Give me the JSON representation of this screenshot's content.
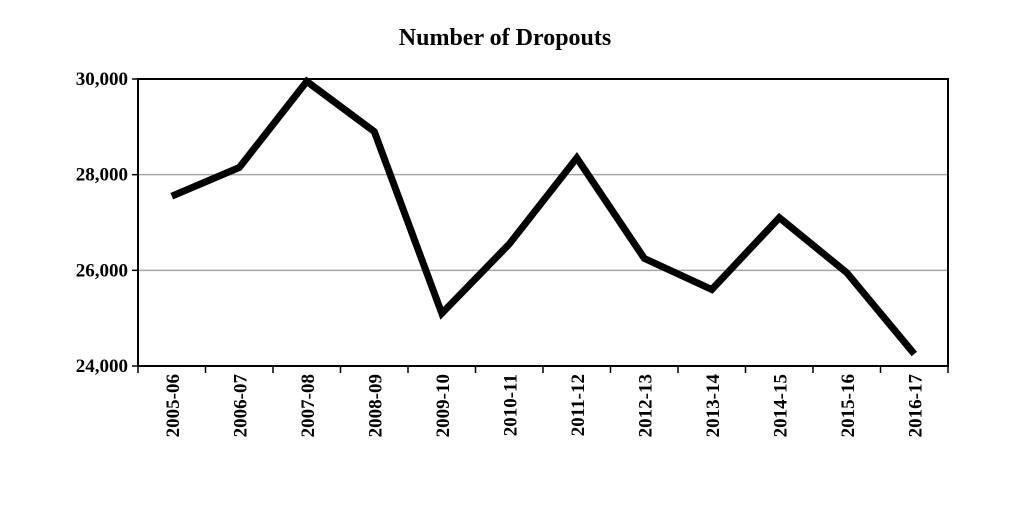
{
  "chart_data": {
    "type": "line",
    "title": "Number of Dropouts",
    "xlabel": "",
    "ylabel": "",
    "categories": [
      "2005-06",
      "2006-07",
      "2007-08",
      "2008-09",
      "2009-10",
      "2010-11",
      "2011-12",
      "2012-13",
      "2013-14",
      "2014-15",
      "2015-16",
      "2016-17"
    ],
    "series": [
      {
        "values": [
          27550,
          28150,
          29950,
          28900,
          25100,
          26550,
          28350,
          26250,
          25600,
          27100,
          25950,
          24250
        ]
      }
    ],
    "ylim": [
      24000,
      30000
    ],
    "yticks": [
      24000,
      26000,
      28000,
      30000
    ],
    "ytick_labels": [
      "24,000",
      "26,000",
      "28,000",
      "30,000"
    ],
    "grid": true,
    "legend": "none",
    "colors": {
      "line": "#000000",
      "grid": "#a6a6a6",
      "frame": "#000000"
    }
  }
}
